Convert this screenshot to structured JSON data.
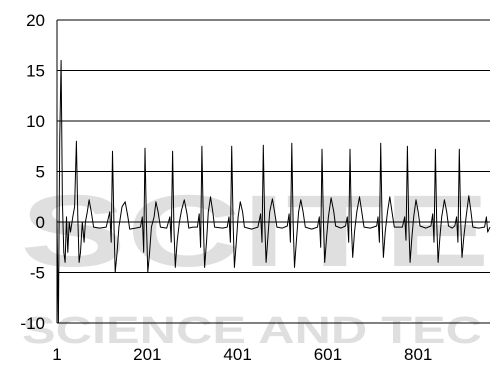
{
  "watermark": {
    "logo_text": "SCITE",
    "tagline": "SCIENCE AND TEC"
  },
  "chart_data": {
    "type": "line",
    "title": "",
    "xlabel": "",
    "ylabel": "",
    "ylim": [
      -10,
      20
    ],
    "y_ticks": [
      20,
      15,
      10,
      5,
      0,
      -5,
      -10
    ],
    "x_ticks": [
      1,
      201,
      401,
      601,
      801
    ],
    "xlim": [
      1,
      960
    ],
    "grid": "horizontal",
    "colors": {
      "line": "#000000",
      "grid": "#000000",
      "axis": "#000000"
    },
    "series": [
      {
        "points": [
          [
            1,
            0
          ],
          [
            4,
            -10
          ],
          [
            7,
            8
          ],
          [
            10,
            16
          ],
          [
            13,
            2
          ],
          [
            16,
            -3
          ],
          [
            19,
            -4
          ],
          [
            22,
            0.5
          ],
          [
            25,
            -3
          ],
          [
            28,
            0
          ],
          [
            31,
            -1
          ],
          [
            36,
            0.5
          ],
          [
            40,
            1.5
          ],
          [
            44,
            8
          ],
          [
            47,
            0.5
          ],
          [
            50,
            -4
          ],
          [
            53,
            -3
          ],
          [
            57,
            0
          ],
          [
            61,
            -2
          ],
          [
            64,
            0
          ],
          [
            68,
            1
          ],
          [
            72,
            2.2
          ],
          [
            77,
            1
          ],
          [
            82,
            -0.5
          ],
          [
            95,
            -0.6
          ],
          [
            110,
            -0.5
          ],
          [
            118,
            1
          ],
          [
            121,
            -2
          ],
          [
            124,
            7
          ],
          [
            127,
            0
          ],
          [
            130,
            -5
          ],
          [
            134,
            -3
          ],
          [
            138,
            -0.5
          ],
          [
            145,
            1.5
          ],
          [
            152,
            2
          ],
          [
            158,
            0.5
          ],
          [
            162,
            -0.7
          ],
          [
            175,
            -0.6
          ],
          [
            186,
            -0.5
          ],
          [
            190,
            0.5
          ],
          [
            193,
            -3
          ],
          [
            196,
            7.3
          ],
          [
            199,
            0
          ],
          [
            202,
            -5
          ],
          [
            206,
            -3
          ],
          [
            210,
            -0.5
          ],
          [
            216,
            0.5
          ],
          [
            220,
            2
          ],
          [
            225,
            1
          ],
          [
            230,
            -0.5
          ],
          [
            244,
            -0.6
          ],
          [
            251,
            0.5
          ],
          [
            254,
            -2
          ],
          [
            257,
            7
          ],
          [
            260,
            -0.5
          ],
          [
            263,
            -4.5
          ],
          [
            267,
            -2
          ],
          [
            272,
            0
          ],
          [
            277,
            1.2
          ],
          [
            283,
            2.2
          ],
          [
            289,
            0.8
          ],
          [
            293,
            -0.6
          ],
          [
            302,
            -0.5
          ],
          [
            312,
            -0.5
          ],
          [
            316,
            0.8
          ],
          [
            319,
            -2.5
          ],
          [
            322,
            7.5
          ],
          [
            325,
            0
          ],
          [
            328,
            -4.5
          ],
          [
            332,
            -2
          ],
          [
            336,
            1
          ],
          [
            341,
            2.5
          ],
          [
            346,
            1
          ],
          [
            350,
            -0.5
          ],
          [
            368,
            -0.6
          ],
          [
            378,
            -0.5
          ],
          [
            382,
            0.5
          ],
          [
            385,
            -2
          ],
          [
            388,
            7.5
          ],
          [
            391,
            0
          ],
          [
            394,
            -4.5
          ],
          [
            398,
            -2
          ],
          [
            402,
            0.5
          ],
          [
            407,
            2
          ],
          [
            412,
            1
          ],
          [
            416,
            -0.5
          ],
          [
            432,
            -0.7
          ],
          [
            446,
            -0.5
          ],
          [
            452,
            0.8
          ],
          [
            455,
            -2
          ],
          [
            458,
            7.6
          ],
          [
            461,
            0
          ],
          [
            464,
            -4
          ],
          [
            468,
            -1.5
          ],
          [
            472,
            1
          ],
          [
            478,
            2.3
          ],
          [
            483,
            1
          ],
          [
            488,
            -0.5
          ],
          [
            500,
            -0.6
          ],
          [
            511,
            -0.4
          ],
          [
            515,
            0.8
          ],
          [
            518,
            -2
          ],
          [
            521,
            7.8
          ],
          [
            524,
            0
          ],
          [
            527,
            -4.5
          ],
          [
            531,
            -2
          ],
          [
            536,
            1
          ],
          [
            541,
            2.2
          ],
          [
            546,
            1
          ],
          [
            551,
            -0.5
          ],
          [
            565,
            -0.7
          ],
          [
            578,
            -0.5
          ],
          [
            582,
            0.5
          ],
          [
            585,
            -2.5
          ],
          [
            588,
            7.2
          ],
          [
            591,
            0
          ],
          [
            594,
            -4
          ],
          [
            598,
            -1.5
          ],
          [
            602,
            0.5
          ],
          [
            608,
            2.4
          ],
          [
            614,
            1
          ],
          [
            618,
            -0.4
          ],
          [
            630,
            -0.6
          ],
          [
            640,
            -0.4
          ],
          [
            644,
            0.5
          ],
          [
            647,
            -2
          ],
          [
            650,
            7.2
          ],
          [
            653,
            -0.5
          ],
          [
            656,
            -3.5
          ],
          [
            660,
            -1
          ],
          [
            665,
            1
          ],
          [
            671,
            2.5
          ],
          [
            676,
            1
          ],
          [
            681,
            -0.5
          ],
          [
            695,
            -0.6
          ],
          [
            709,
            -0.4
          ],
          [
            712,
            0.5
          ],
          [
            715,
            -2
          ],
          [
            718,
            7.8
          ],
          [
            721,
            0
          ],
          [
            724,
            -3.5
          ],
          [
            728,
            -1
          ],
          [
            733,
            1
          ],
          [
            738,
            2.5
          ],
          [
            743,
            1
          ],
          [
            748,
            -0.5
          ],
          [
            766,
            -0.5
          ],
          [
            771,
            0.5
          ],
          [
            774,
            -1.8
          ],
          [
            777,
            7.5
          ],
          [
            780,
            0
          ],
          [
            783,
            -4
          ],
          [
            787,
            -1.5
          ],
          [
            791,
            0.5
          ],
          [
            796,
            2.2
          ],
          [
            801,
            1
          ],
          [
            805,
            -0.4
          ],
          [
            818,
            -0.6
          ],
          [
            829,
            -0.4
          ],
          [
            833,
            0.8
          ],
          [
            836,
            -2
          ],
          [
            839,
            7.2
          ],
          [
            842,
            0
          ],
          [
            845,
            -4
          ],
          [
            849,
            -1.5
          ],
          [
            853,
            0.5
          ],
          [
            859,
            2.2
          ],
          [
            864,
            1
          ],
          [
            868,
            -0.4
          ],
          [
            876,
            -0.6
          ],
          [
            882,
            -0.4
          ],
          [
            886,
            0.5
          ],
          [
            889,
            -2
          ],
          [
            892,
            7.2
          ],
          [
            895,
            0
          ],
          [
            898,
            -3.5
          ],
          [
            902,
            -1.5
          ],
          [
            907,
            0.5
          ],
          [
            913,
            2.6
          ],
          [
            918,
            1
          ],
          [
            922,
            -0.5
          ],
          [
            935,
            -0.6
          ],
          [
            948,
            -0.5
          ],
          [
            952,
            0.5
          ],
          [
            955,
            -1
          ],
          [
            960,
            -0.5
          ]
        ]
      }
    ]
  }
}
